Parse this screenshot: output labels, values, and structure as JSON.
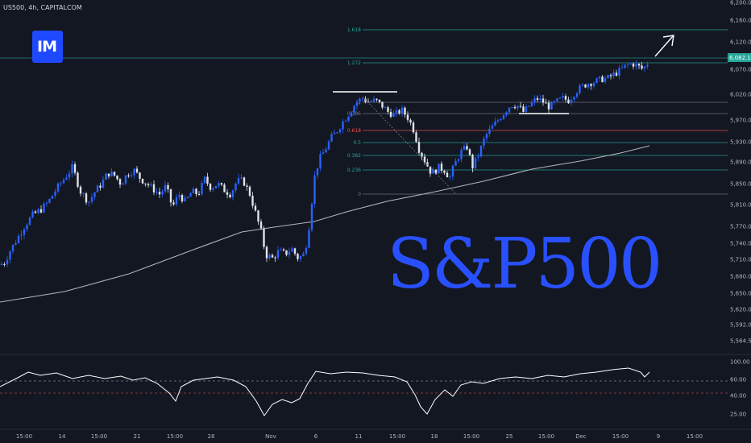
{
  "header": {
    "symbol_line": "US500, 4h, CAPITALCOM"
  },
  "logo": {
    "text": "IM"
  },
  "watermark": {
    "text": "S&P500"
  },
  "current_price_label": "6,082.1",
  "chart_data": {
    "type": "candlestick",
    "title": "US500, 4h, CAPITALCOM",
    "price_axis": {
      "ticks": [
        6200.0,
        6160.0,
        6120.0,
        6070.0,
        6020.0,
        5970.0,
        5930.0,
        5890.0,
        5850.0,
        5810.0,
        5770.0,
        5740.0,
        5710.0,
        5680.0,
        5650.0,
        5620.0,
        5592.0,
        5564.5
      ],
      "tick_labels": [
        "6,200.0",
        "6,160.0",
        "6,120.0",
        "6,070.0",
        "6,020.0",
        "5,970.0",
        "5,930.0",
        "5,890.0",
        "5,850.0",
        "5,810.0",
        "5,770.0",
        "5,740.0",
        "5,710.0",
        "5,680.0",
        "5,650.0",
        "5,620.0",
        "5,592.0",
        "5,564.5"
      ]
    },
    "time_axis": {
      "tick_labels": [
        "15:00",
        "14",
        "15:00",
        "21",
        "15:00",
        "28",
        "Nov",
        "6",
        "11",
        "15:00",
        "18",
        "15:00",
        "25",
        "15:00",
        "Dec",
        "15:00",
        "9",
        "15:00"
      ]
    },
    "price_path": [
      {
        "t": 0,
        "p": 5700
      },
      {
        "t": 6,
        "p": 5705
      },
      {
        "t": 12,
        "p": 5725
      },
      {
        "t": 20,
        "p": 5745
      },
      {
        "t": 30,
        "p": 5770
      },
      {
        "t": 40,
        "p": 5790
      },
      {
        "t": 50,
        "p": 5800
      },
      {
        "t": 60,
        "p": 5815
      },
      {
        "t": 70,
        "p": 5840
      },
      {
        "t": 80,
        "p": 5860
      },
      {
        "t": 90,
        "p": 5880
      },
      {
        "t": 100,
        "p": 5835
      },
      {
        "t": 110,
        "p": 5815
      },
      {
        "t": 118,
        "p": 5835
      },
      {
        "t": 126,
        "p": 5850
      },
      {
        "t": 134,
        "p": 5870
      },
      {
        "t": 142,
        "p": 5865
      },
      {
        "t": 150,
        "p": 5850
      },
      {
        "t": 158,
        "p": 5868
      },
      {
        "t": 166,
        "p": 5875
      },
      {
        "t": 174,
        "p": 5860
      },
      {
        "t": 182,
        "p": 5850
      },
      {
        "t": 190,
        "p": 5840
      },
      {
        "t": 198,
        "p": 5830
      },
      {
        "t": 206,
        "p": 5845
      },
      {
        "t": 214,
        "p": 5805
      },
      {
        "t": 222,
        "p": 5830
      },
      {
        "t": 230,
        "p": 5815
      },
      {
        "t": 238,
        "p": 5835
      },
      {
        "t": 246,
        "p": 5830
      },
      {
        "t": 254,
        "p": 5858
      },
      {
        "t": 262,
        "p": 5842
      },
      {
        "t": 270,
        "p": 5850
      },
      {
        "t": 278,
        "p": 5838
      },
      {
        "t": 286,
        "p": 5830
      },
      {
        "t": 294,
        "p": 5855
      },
      {
        "t": 302,
        "p": 5855
      },
      {
        "t": 310,
        "p": 5830
      },
      {
        "t": 318,
        "p": 5790
      },
      {
        "t": 324,
        "p": 5760
      },
      {
        "t": 330,
        "p": 5718
      },
      {
        "t": 338,
        "p": 5712
      },
      {
        "t": 346,
        "p": 5725
      },
      {
        "t": 354,
        "p": 5720
      },
      {
        "t": 362,
        "p": 5730
      },
      {
        "t": 370,
        "p": 5712
      },
      {
        "t": 378,
        "p": 5720
      },
      {
        "t": 384,
        "p": 5775
      },
      {
        "t": 390,
        "p": 5860
      },
      {
        "t": 396,
        "p": 5895
      },
      {
        "t": 402,
        "p": 5910
      },
      {
        "t": 410,
        "p": 5935
      },
      {
        "t": 418,
        "p": 5950
      },
      {
        "t": 426,
        "p": 5968
      },
      {
        "t": 434,
        "p": 5985
      },
      {
        "t": 442,
        "p": 6005
      },
      {
        "t": 450,
        "p": 6012
      },
      {
        "t": 458,
        "p": 6005
      },
      {
        "t": 466,
        "p": 6008
      },
      {
        "t": 474,
        "p": 5998
      },
      {
        "t": 482,
        "p": 5985
      },
      {
        "t": 490,
        "p": 5980
      },
      {
        "t": 498,
        "p": 5990
      },
      {
        "t": 506,
        "p": 5975
      },
      {
        "t": 514,
        "p": 5950
      },
      {
        "t": 520,
        "p": 5915
      },
      {
        "t": 528,
        "p": 5890
      },
      {
        "t": 536,
        "p": 5868
      },
      {
        "t": 544,
        "p": 5880
      },
      {
        "t": 552,
        "p": 5875
      },
      {
        "t": 558,
        "p": 5860
      },
      {
        "t": 564,
        "p": 5885
      },
      {
        "t": 572,
        "p": 5910
      },
      {
        "t": 580,
        "p": 5920
      },
      {
        "t": 586,
        "p": 5880
      },
      {
        "t": 594,
        "p": 5905
      },
      {
        "t": 602,
        "p": 5940
      },
      {
        "t": 610,
        "p": 5955
      },
      {
        "t": 618,
        "p": 5970
      },
      {
        "t": 626,
        "p": 5985
      },
      {
        "t": 634,
        "p": 6000
      },
      {
        "t": 642,
        "p": 5998
      },
      {
        "t": 650,
        "p": 5985
      },
      {
        "t": 658,
        "p": 6000
      },
      {
        "t": 666,
        "p": 6012
      },
      {
        "t": 674,
        "p": 6005
      },
      {
        "t": 682,
        "p": 5995
      },
      {
        "t": 690,
        "p": 6005
      },
      {
        "t": 698,
        "p": 6012
      },
      {
        "t": 706,
        "p": 6008
      },
      {
        "t": 714,
        "p": 6025
      },
      {
        "t": 722,
        "p": 6035
      },
      {
        "t": 730,
        "p": 6042
      },
      {
        "t": 738,
        "p": 6045
      },
      {
        "t": 746,
        "p": 6050
      },
      {
        "t": 754,
        "p": 6052
      },
      {
        "t": 762,
        "p": 6060
      },
      {
        "t": 770,
        "p": 6068
      },
      {
        "t": 778,
        "p": 6078
      },
      {
        "t": 786,
        "p": 6080
      },
      {
        "t": 792,
        "p": 6075
      },
      {
        "t": 798,
        "p": 6070
      },
      {
        "t": 804,
        "p": 6082
      },
      {
        "t": 808,
        "p": 6082
      }
    ],
    "fibonacci": {
      "levels": [
        {
          "label": "1.618",
          "color": "#26a69a"
        },
        {
          "label": "1.272",
          "color": "#26a69a"
        },
        {
          "label": "1",
          "color": "#787b86"
        },
        {
          "label": "0.786",
          "color": "#787b86"
        },
        {
          "label": "0.618",
          "color": "#ef5350"
        },
        {
          "label": "0.5",
          "color": "#26a69a"
        },
        {
          "label": "0.382",
          "color": "#26a69a"
        },
        {
          "label": "0.236",
          "color": "#26a69a"
        },
        {
          "label": "0",
          "color": "#787b86"
        }
      ]
    },
    "oscillator": {
      "ticks": [
        100.0,
        60.0,
        40.0,
        25.0
      ],
      "tick_labels": [
        "100.00",
        "60.00",
        "40.00",
        "25.00"
      ],
      "reference_levels": [
        60,
        40
      ]
    },
    "colors": {
      "up": "#2962ff",
      "down": "#e0e3eb",
      "background": "#131722",
      "moving_average": "#b2b5be",
      "accent": "#2950ff"
    }
  }
}
